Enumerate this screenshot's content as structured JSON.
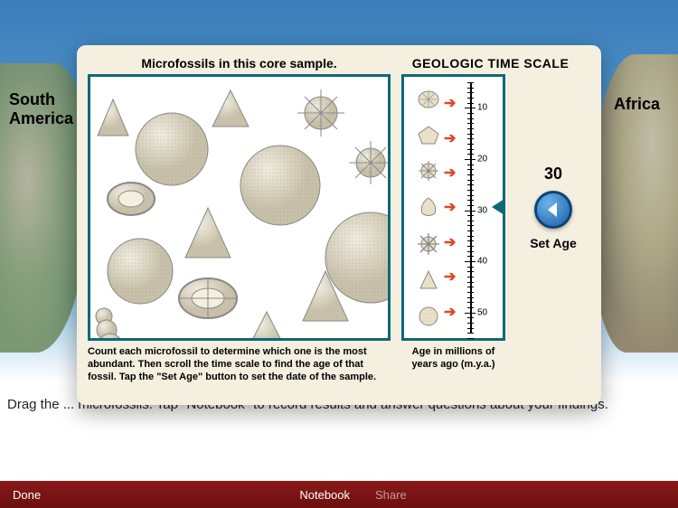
{
  "map": {
    "left_continent": "South\nAmerica",
    "right_continent": "Africa"
  },
  "modal": {
    "sample_title": "Microfossils in this core sample.",
    "scale_title": "GEOLOGIC TIME SCALE",
    "sample_caption": "Count each microfossil to determine which one is the most abundant. Then scroll the time scale to find the age of that fossil. Tap the \"Set Age\" button to set the date of the sample.",
    "scale_caption": "Age in millions of years ago (m.y.a.)",
    "age_value": "30",
    "set_age_label": "Set Age",
    "scale_ticks": [
      10,
      20,
      30,
      40,
      50
    ],
    "pointer_value": 30,
    "colors": {
      "panel_border": "#0d6878",
      "arrow": "#d94a2a",
      "modal_bg": "#f5efe0",
      "btn_gradient_top": "#6bb4e8",
      "btn_gradient_bot": "#1a5da8"
    }
  },
  "instructions": "Drag the ... microfossils. Tap \"Notebook\" to record results and answer questions about your findings.",
  "bottom_bar": {
    "done": "Done",
    "notebook": "Notebook",
    "share": "Share"
  }
}
